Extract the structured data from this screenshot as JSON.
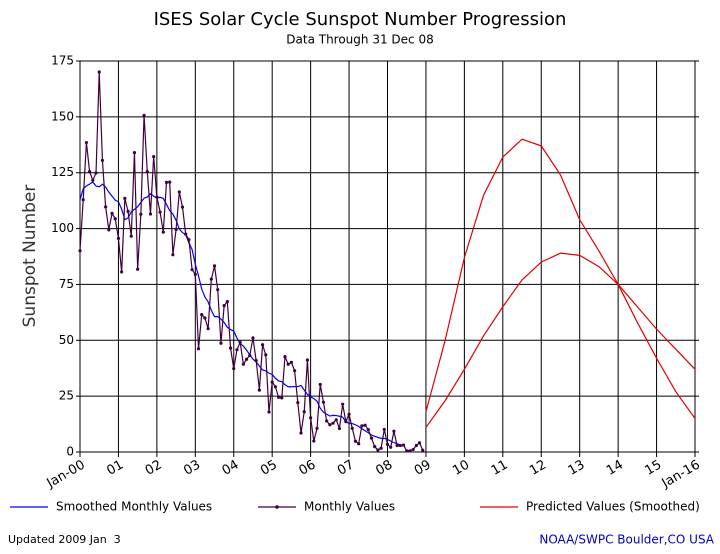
{
  "chart_data": {
    "type": "line",
    "title": "ISES Solar Cycle Sunspot Number Progression",
    "subtitle": "Data Through 31 Dec 08",
    "ylabel": "Sunspot Number",
    "xlim": [
      2000,
      2016
    ],
    "xticks": [
      {
        "value": 2000,
        "label": "Jan-00"
      },
      {
        "value": 2001,
        "label": "01"
      },
      {
        "value": 2002,
        "label": "02"
      },
      {
        "value": 2003,
        "label": "03"
      },
      {
        "value": 2004,
        "label": "04"
      },
      {
        "value": 2005,
        "label": "05"
      },
      {
        "value": 2006,
        "label": "06"
      },
      {
        "value": 2007,
        "label": "07"
      },
      {
        "value": 2008,
        "label": "08"
      },
      {
        "value": 2009,
        "label": "09"
      },
      {
        "value": 2010,
        "label": "10"
      },
      {
        "value": 2011,
        "label": "11"
      },
      {
        "value": 2012,
        "label": "12"
      },
      {
        "value": 2013,
        "label": "13"
      },
      {
        "value": 2014,
        "label": "14"
      },
      {
        "value": 2015,
        "label": "15"
      },
      {
        "value": 2016,
        "label": "Jan-16"
      }
    ],
    "ylim": [
      0,
      175
    ],
    "yticks": [
      0,
      25,
      50,
      75,
      100,
      125,
      150,
      175
    ],
    "grid": true,
    "series": [
      {
        "name": "Smoothed Monthly Values",
        "color": "#0000ff",
        "x": [
          "2000-01",
          "2000-02",
          "2000-03",
          "2000-04",
          "2000-05",
          "2000-06",
          "2000-07",
          "2000-08",
          "2000-09",
          "2000-10",
          "2000-11",
          "2000-12",
          "2001-01",
          "2001-02",
          "2001-03",
          "2001-04",
          "2001-05",
          "2001-06",
          "2001-07",
          "2001-08",
          "2001-09",
          "2001-10",
          "2001-11",
          "2001-12",
          "2002-01",
          "2002-02",
          "2002-03",
          "2002-04",
          "2002-05",
          "2002-06",
          "2002-07",
          "2002-08",
          "2002-09",
          "2002-10",
          "2002-11",
          "2002-12",
          "2003-01",
          "2003-02",
          "2003-03",
          "2003-04",
          "2003-05",
          "2003-06",
          "2003-07",
          "2003-08",
          "2003-09",
          "2003-10",
          "2003-11",
          "2003-12",
          "2004-01",
          "2004-02",
          "2004-03",
          "2004-04",
          "2004-05",
          "2004-06",
          "2004-07",
          "2004-08",
          "2004-09",
          "2004-10",
          "2004-11",
          "2004-12",
          "2005-01",
          "2005-02",
          "2005-03",
          "2005-04",
          "2005-05",
          "2005-06",
          "2005-07",
          "2005-08",
          "2005-09",
          "2005-10",
          "2005-11",
          "2005-12",
          "2006-01",
          "2006-02",
          "2006-03",
          "2006-04",
          "2006-05",
          "2006-06",
          "2006-07",
          "2006-08",
          "2006-09",
          "2006-10",
          "2006-11",
          "2006-12",
          "2007-01",
          "2007-02",
          "2007-03",
          "2007-04",
          "2007-05",
          "2007-06",
          "2007-07",
          "2007-08",
          "2007-09",
          "2007-10",
          "2007-11",
          "2007-12",
          "2008-01",
          "2008-02",
          "2008-03",
          "2008-04",
          "2008-05",
          "2008-06"
        ],
        "values": [
          112.9,
          117.8,
          119.1,
          119.9,
          120.8,
          119.0,
          118.7,
          119.8,
          118.6,
          116.3,
          114.5,
          112.7,
          112.0,
          108.7,
          104.0,
          104.8,
          107.5,
          108.6,
          109.8,
          111.7,
          113.6,
          114.1,
          115.6,
          114.5,
          113.6,
          114.0,
          113.5,
          110.8,
          108.0,
          106.5,
          103.7,
          99.8,
          98.2,
          97.3,
          93.6,
          90.6,
          84.0,
          78.8,
          72.9,
          69.4,
          67.2,
          63.4,
          60.6,
          60.6,
          59.5,
          58.0,
          55.8,
          54.8,
          54.1,
          51.0,
          48.6,
          47.4,
          45.6,
          43.5,
          41.6,
          40.3,
          38.5,
          36.7,
          36.3,
          35.3,
          34.7,
          33.0,
          31.8,
          31.5,
          30.1,
          29.2,
          29.2,
          29.3,
          29.3,
          29.8,
          27.7,
          25.8,
          24.7,
          23.9,
          22.7,
          19.6,
          17.8,
          16.9,
          16.1,
          16.4,
          16.3,
          16.0,
          15.6,
          13.5,
          12.8,
          12.7,
          12.2,
          11.4,
          10.4,
          9.5,
          8.6,
          7.6,
          7.0,
          6.5,
          6.1,
          6.1,
          5.6,
          4.9,
          4.2,
          3.7,
          3.1,
          2.7
        ]
      },
      {
        "name": "Monthly Values",
        "color": "#400040",
        "markers": true,
        "x": [
          "2000-01",
          "2000-02",
          "2000-03",
          "2000-04",
          "2000-05",
          "2000-06",
          "2000-07",
          "2000-08",
          "2000-09",
          "2000-10",
          "2000-11",
          "2000-12",
          "2001-01",
          "2001-02",
          "2001-03",
          "2001-04",
          "2001-05",
          "2001-06",
          "2001-07",
          "2001-08",
          "2001-09",
          "2001-10",
          "2001-11",
          "2001-12",
          "2002-01",
          "2002-02",
          "2002-03",
          "2002-04",
          "2002-05",
          "2002-06",
          "2002-07",
          "2002-08",
          "2002-09",
          "2002-10",
          "2002-11",
          "2002-12",
          "2003-01",
          "2003-02",
          "2003-03",
          "2003-04",
          "2003-05",
          "2003-06",
          "2003-07",
          "2003-08",
          "2003-09",
          "2003-10",
          "2003-11",
          "2003-12",
          "2004-01",
          "2004-02",
          "2004-03",
          "2004-04",
          "2004-05",
          "2004-06",
          "2004-07",
          "2004-08",
          "2004-09",
          "2004-10",
          "2004-11",
          "2004-12",
          "2005-01",
          "2005-02",
          "2005-03",
          "2005-04",
          "2005-05",
          "2005-06",
          "2005-07",
          "2005-08",
          "2005-09",
          "2005-10",
          "2005-11",
          "2005-12",
          "2006-01",
          "2006-02",
          "2006-03",
          "2006-04",
          "2006-05",
          "2006-06",
          "2006-07",
          "2006-08",
          "2006-09",
          "2006-10",
          "2006-11",
          "2006-12",
          "2007-01",
          "2007-02",
          "2007-03",
          "2007-04",
          "2007-05",
          "2007-06",
          "2007-07",
          "2007-08",
          "2007-09",
          "2007-10",
          "2007-11",
          "2007-12",
          "2008-01",
          "2008-02",
          "2008-03",
          "2008-04",
          "2008-05",
          "2008-06",
          "2008-07",
          "2008-08",
          "2008-09",
          "2008-10",
          "2008-11",
          "2008-12"
        ],
        "values": [
          90.1,
          112.9,
          138.5,
          125.5,
          121.6,
          124.9,
          170.1,
          130.5,
          109.7,
          99.4,
          106.8,
          104.4,
          95.6,
          80.6,
          113.5,
          107.7,
          96.6,
          134.0,
          81.8,
          106.4,
          150.7,
          125.5,
          106.5,
          132.2,
          114.1,
          107.4,
          98.4,
          120.7,
          120.8,
          88.3,
          99.6,
          116.4,
          109.6,
          97.5,
          95.0,
          81.6,
          79.5,
          46.2,
          61.5,
          60.0,
          55.2,
          77.4,
          83.3,
          72.7,
          48.7,
          65.5,
          67.3,
          46.5,
          37.3,
          45.8,
          49.1,
          39.3,
          41.5,
          43.2,
          51.1,
          40.9,
          27.7,
          48.0,
          43.5,
          17.9,
          31.3,
          29.2,
          24.5,
          24.2,
          42.7,
          39.3,
          40.1,
          36.4,
          22.1,
          8.5,
          18.0,
          41.2,
          15.3,
          4.9,
          10.6,
          30.2,
          22.3,
          13.9,
          12.2,
          12.9,
          14.4,
          10.5,
          21.4,
          13.6,
          16.9,
          10.6,
          4.8,
          3.7,
          11.7,
          12.0,
          10.0,
          6.2,
          2.4,
          0.9,
          1.7,
          10.1,
          3.4,
          2.1,
          9.3,
          2.9,
          2.9,
          3.1,
          0.5,
          0.5,
          1.1,
          2.9,
          4.1,
          0.8
        ]
      },
      {
        "name": "Predicted Values (Smoothed)",
        "color": "#e00000",
        "x": [
          "2009-01",
          "2009-07",
          "2010-01",
          "2010-07",
          "2011-01",
          "2011-07",
          "2012-01",
          "2012-07",
          "2013-01",
          "2013-07",
          "2014-01",
          "2014-07",
          "2015-01",
          "2015-07",
          "2016-01"
        ],
        "values": [
          18,
          50,
          87,
          115,
          132,
          140,
          137,
          124,
          104,
          90,
          75,
          58,
          42,
          27,
          15
        ]
      },
      {
        "color": "#e00000",
        "x": [
          "2009-01",
          "2009-07",
          "2010-01",
          "2010-07",
          "2011-01",
          "2011-07",
          "2012-01",
          "2012-07",
          "2013-01",
          "2013-07",
          "2014-01",
          "2014-07",
          "2015-01",
          "2015-07",
          "2016-01"
        ],
        "values": [
          11,
          23,
          37,
          52,
          65,
          77,
          85,
          89,
          88,
          83,
          75,
          65,
          55,
          46,
          37
        ]
      }
    ],
    "footer_left": "Updated 2009 Jan  3",
    "footer_right": "NOAA/SWPC Boulder,CO USA"
  }
}
